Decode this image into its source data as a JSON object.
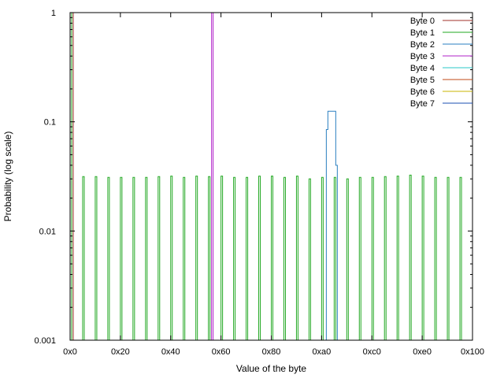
{
  "chart_data": {
    "type": "line",
    "title": "",
    "xlabel": "Value of the byte",
    "ylabel": "Probability (log scale)",
    "x_scale": "linear",
    "y_scale": "log",
    "xlim": [
      0,
      256
    ],
    "ylim": [
      0.001,
      1
    ],
    "x_ticks": [
      {
        "value": 0,
        "label": "0x0"
      },
      {
        "value": 32,
        "label": "0x20"
      },
      {
        "value": 64,
        "label": "0x40"
      },
      {
        "value": 96,
        "label": "0x60"
      },
      {
        "value": 128,
        "label": "0x80"
      },
      {
        "value": 160,
        "label": "0xa0"
      },
      {
        "value": 192,
        "label": "0xc0"
      },
      {
        "value": 224,
        "label": "0xe0"
      },
      {
        "value": 256,
        "label": "0x100"
      }
    ],
    "y_ticks": [
      {
        "value": 0.001,
        "label": "0.001"
      },
      {
        "value": 0.01,
        "label": "0.01"
      },
      {
        "value": 0.1,
        "label": "0.1"
      },
      {
        "value": 1,
        "label": "1"
      }
    ],
    "grid": false,
    "legend_position": "top-right",
    "series": [
      {
        "name": "Byte 0",
        "color": "#a0302a",
        "type": "steps",
        "x": [
          1,
          2
        ],
        "y": [
          1,
          0.001
        ]
      },
      {
        "name": "Byte 1",
        "color": "#22a822",
        "type": "spikes",
        "x": [
          0,
          8,
          16,
          24,
          32,
          40,
          48,
          56,
          64,
          72,
          80,
          88,
          96,
          104,
          112,
          120,
          128,
          136,
          144,
          152,
          160,
          168,
          176,
          184,
          192,
          200,
          208,
          216,
          224,
          232,
          240,
          248
        ],
        "y": [
          1,
          0.0315,
          0.0315,
          0.031,
          0.031,
          0.031,
          0.031,
          0.0315,
          0.0318,
          0.031,
          0.0318,
          0.0315,
          0.0318,
          0.031,
          0.031,
          0.0318,
          0.0318,
          0.031,
          0.0318,
          0.03,
          0.031,
          0.031,
          0.03,
          0.031,
          0.031,
          0.0315,
          0.0318,
          0.0325,
          0.0318,
          0.031,
          0.031,
          0.031
        ]
      },
      {
        "name": "Byte 2",
        "color": "#2a7fc0",
        "type": "steps",
        "x": [
          163,
          164,
          165,
          166,
          167,
          168,
          169
        ],
        "y": [
          0.085,
          0.125,
          0.125,
          0.125,
          0.125,
          0.125,
          0.04
        ]
      },
      {
        "name": "Byte 3",
        "color": "#b020c8",
        "type": "steps",
        "x": [
          90,
          91
        ],
        "y": [
          1,
          0.001
        ]
      },
      {
        "name": "Byte 4",
        "color": "#28c8c8",
        "type": "steps",
        "x": [],
        "y": []
      },
      {
        "name": "Byte 5",
        "color": "#c04a14",
        "type": "steps",
        "x": [],
        "y": []
      },
      {
        "name": "Byte 6",
        "color": "#c8b400",
        "type": "steps",
        "x": [],
        "y": []
      },
      {
        "name": "Byte 7",
        "color": "#1a4fb0",
        "type": "steps",
        "x": [],
        "y": []
      }
    ]
  }
}
